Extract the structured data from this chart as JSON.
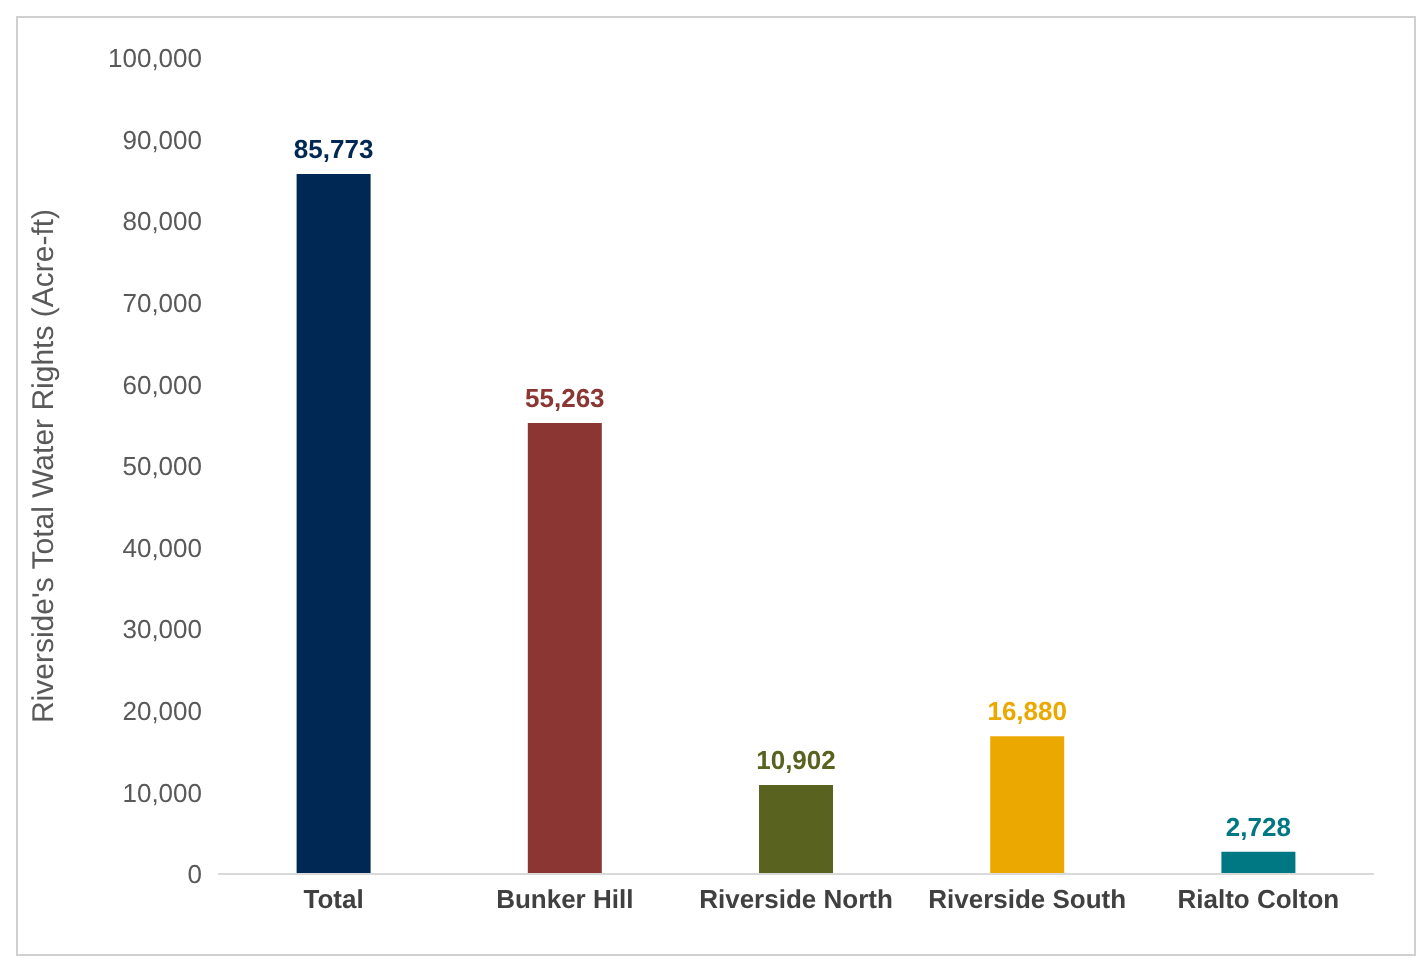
{
  "chart_data": {
    "type": "bar",
    "ylabel": "Riverside's Total Water Rights (Acre-ft)",
    "categories": [
      "Total",
      "Bunker Hill",
      "Riverside North",
      "Riverside South",
      "Rialto Colton"
    ],
    "values": [
      85773,
      55263,
      10902,
      16880,
      2728
    ],
    "value_labels": [
      "85,773",
      "55,263",
      "10,902",
      "16,880",
      "2,728"
    ],
    "colors": [
      "#002855",
      "#8b3632",
      "#5a621f",
      "#eba900",
      "#007883"
    ],
    "ylim": [
      0,
      100000
    ],
    "yticks": [
      0,
      {
        "value": 10000,
        "label": "10,000"
      },
      {
        "value": 20000,
        "label": "20,000"
      },
      {
        "value": 30000,
        "label": "30,000"
      },
      {
        "value": 40000,
        "label": "40,000"
      },
      {
        "value": 50000,
        "label": "50,000"
      },
      {
        "value": 60000,
        "label": "60,000"
      },
      {
        "value": 70000,
        "label": "70,000"
      },
      {
        "value": 80000,
        "label": "80,000"
      },
      {
        "value": 90000,
        "label": "90,000"
      },
      {
        "value": 100000,
        "label": "100,000"
      }
    ],
    "grid": false,
    "legend": false
  }
}
